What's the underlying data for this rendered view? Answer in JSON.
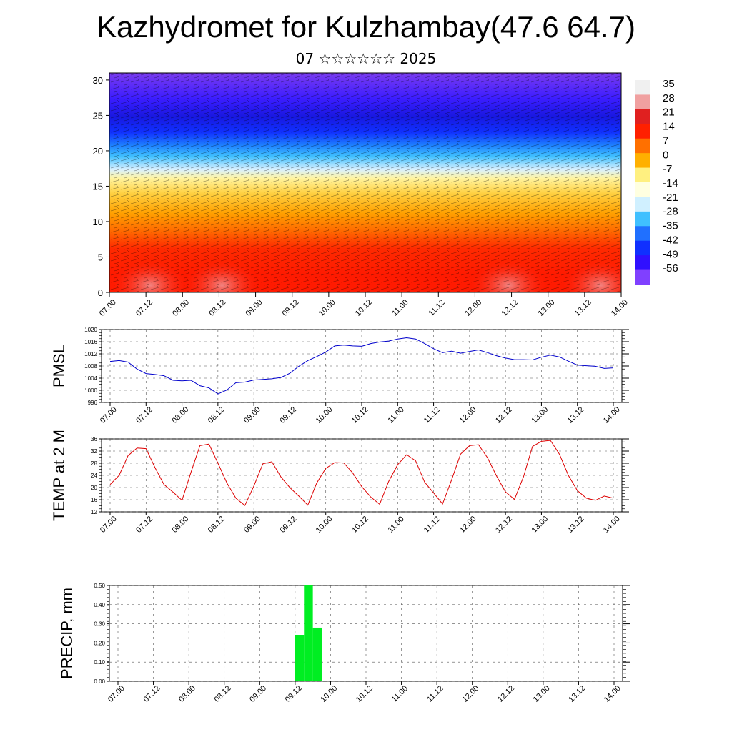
{
  "title": "Kazhydromet for Kulzhambay(47.6 64.7)",
  "subtitle": "07 ☆☆☆☆☆☆ 2025",
  "x_tick_labels": [
    "07.00",
    "07.12",
    "08.00",
    "08.12",
    "09.00",
    "09.12",
    "10.00",
    "10.12",
    "11.00",
    "11.12",
    "12.00",
    "12.12",
    "13.00",
    "13.12",
    "14.00"
  ],
  "chart_data": [
    {
      "type": "heatmap",
      "title": "",
      "y_ticks": [
        0,
        5,
        10,
        15,
        20,
        25,
        30
      ],
      "ylim": [
        0,
        31
      ],
      "colorbar_labels": [
        "35",
        "28",
        "21",
        "14",
        "7",
        "0",
        "-7",
        "-14",
        "-21",
        "-28",
        "-35",
        "-42",
        "-49",
        "-56"
      ],
      "colorbar_colors": [
        "#f0f0f0",
        "#f0a0a0",
        "#e02020",
        "#ff2000",
        "#ff7000",
        "#ffb000",
        "#fff080",
        "#ffffe0",
        "#d0f0ff",
        "#40c0ff",
        "#2070ff",
        "#1030ff",
        "#3010ff",
        "#8040ff"
      ],
      "temperature_profile": {
        "heights": [
          0,
          5,
          10,
          15,
          20,
          25,
          30
        ],
        "values": [
          28,
          22,
          8,
          -10,
          -40,
          -56,
          -60
        ]
      }
    },
    {
      "type": "line",
      "ylabel": "PMSL",
      "ylim": [
        996,
        1020
      ],
      "y_ticks": [
        996,
        1000,
        1004,
        1008,
        1012,
        1016,
        1020
      ],
      "series": [
        {
          "color": "#0000cc",
          "x": [
            0,
            1,
            2,
            3,
            4,
            5,
            6,
            7,
            8,
            9,
            10,
            11,
            12,
            13,
            14,
            15,
            16,
            17,
            18,
            19,
            20,
            21,
            22,
            23,
            24,
            25,
            26,
            27,
            28,
            29,
            30,
            31,
            32,
            33,
            34,
            35,
            36,
            37,
            38,
            39,
            40,
            41,
            42,
            43,
            44,
            45,
            46,
            47,
            48,
            49,
            50,
            51,
            52,
            53,
            54,
            55,
            56
          ],
          "values": [
            1009.5,
            1009.8,
            1009.3,
            1007,
            1005.5,
            1005.2,
            1004.8,
            1003.3,
            1003.1,
            1003.3,
            1001.5,
            1000.8,
            998.8,
            1000.1,
            1002.5,
            1002.7,
            1003.4,
            1003.6,
            1003.8,
            1004.2,
            1005.6,
            1007.9,
            1009.8,
            1011.1,
            1012.6,
            1014.6,
            1014.9,
            1014.6,
            1014.5,
            1015.4,
            1015.9,
            1016.2,
            1016.9,
            1017.3,
            1016.9,
            1015.4,
            1013.7,
            1012.4,
            1012.9,
            1012.2,
            1012.8,
            1013.3,
            1012.4,
            1011.4,
            1010.6,
            1010.1,
            1010.1,
            1010,
            1010.9,
            1011.6,
            1011,
            1009.6,
            1008.3,
            1008.1,
            1007.9,
            1007.2,
            1007.4
          ]
        }
      ]
    },
    {
      "type": "line",
      "ylabel": "TEMP at 2 M",
      "ylim": [
        12,
        36
      ],
      "y_ticks": [
        12,
        16,
        20,
        24,
        28,
        32,
        36
      ],
      "series": [
        {
          "color": "#dd0000",
          "x": [
            0,
            1,
            2,
            3,
            4,
            5,
            6,
            7,
            8,
            9,
            10,
            11,
            12,
            13,
            14,
            15,
            16,
            17,
            18,
            19,
            20,
            21,
            22,
            23,
            24,
            25,
            26,
            27,
            28,
            29,
            30,
            31,
            32,
            33,
            34,
            35,
            36,
            37,
            38,
            39,
            40,
            41,
            42,
            43,
            44,
            45,
            46,
            47,
            48,
            49,
            50,
            51,
            52,
            53,
            54,
            55,
            56
          ],
          "values": [
            21,
            24,
            30.5,
            33,
            32.8,
            26.5,
            21,
            18.5,
            15.8,
            25,
            33.8,
            34.3,
            28,
            21.5,
            16.5,
            14.1,
            20.5,
            27.8,
            28.5,
            23.5,
            20,
            17.2,
            14.2,
            21.5,
            26.3,
            28.2,
            28.1,
            24.8,
            20.3,
            16.9,
            14.5,
            22,
            27.5,
            30.8,
            28.8,
            21.8,
            18.2,
            14.6,
            22.5,
            31,
            33.8,
            34.1,
            29.8,
            23.8,
            18.6,
            16.1,
            23.5,
            33.5,
            35.2,
            35.5,
            31,
            24,
            19,
            16.5,
            15.8,
            17.2,
            16.5
          ]
        }
      ]
    },
    {
      "type": "bar",
      "ylabel": "PRECIP, mm",
      "ylim": [
        0,
        0.5
      ],
      "y_ticks": [
        "0.00",
        "0.10",
        "0.20",
        "0.30",
        "0.40",
        "0.50"
      ],
      "series": [
        {
          "color": "#00ee22",
          "bars": [
            {
              "x_start": 20.0,
              "x_end": 21.0,
              "value": 0.24
            },
            {
              "x_start": 21.0,
              "x_end": 22.0,
              "value": 0.5
            },
            {
              "x_start": 22.0,
              "x_end": 23.0,
              "value": 0.28
            }
          ]
        }
      ]
    }
  ]
}
